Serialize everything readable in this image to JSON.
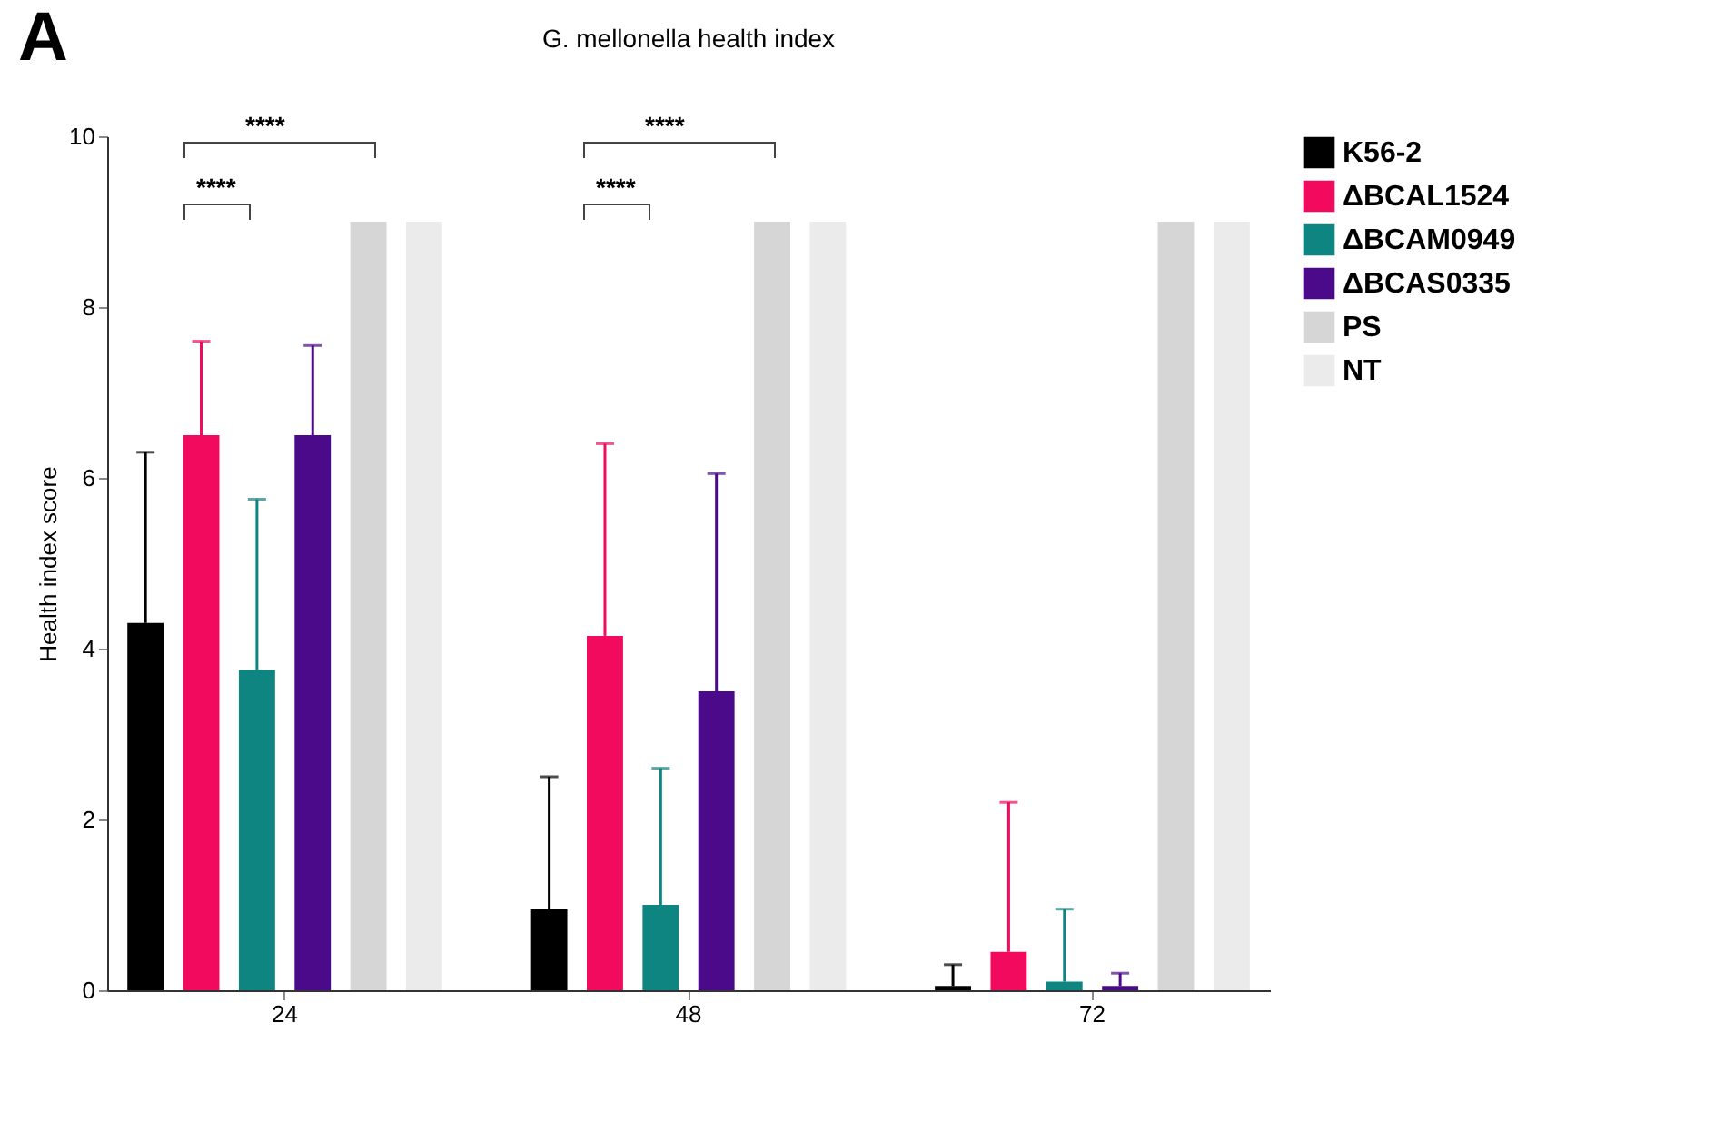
{
  "chart_data": {
    "type": "bar",
    "title": "G. mellonella health index",
    "ylabel": "Health index score",
    "categories": [
      "24",
      "48",
      "72"
    ],
    "series": [
      {
        "name": "K56-2",
        "color": "#000000",
        "values": [
          4.3,
          0.95,
          0.05
        ],
        "errors": [
          [
            4.3,
            6.3
          ],
          [
            0.95,
            2.5
          ],
          [
            0.05,
            0.3
          ]
        ]
      },
      {
        "name": "ΔBCAL1524",
        "color": "#f20a5e",
        "values": [
          6.5,
          4.15,
          0.45
        ],
        "errors": [
          [
            6.5,
            7.6
          ],
          [
            4.15,
            6.4
          ],
          [
            0.45,
            2.2
          ]
        ]
      },
      {
        "name": "ΔBCAM0949",
        "color": "#0e8580",
        "values": [
          3.75,
          1,
          0.1
        ],
        "errors": [
          [
            3.75,
            5.75
          ],
          [
            1,
            2.6
          ],
          [
            0.1,
            0.95
          ]
        ]
      },
      {
        "name": "ΔBCAS0335",
        "color": "#4a0a8a",
        "values": [
          6.5,
          3.5,
          0.05
        ],
        "errors": [
          [
            6.5,
            7.55
          ],
          [
            3.5,
            6.05
          ],
          [
            0.05,
            0.2
          ]
        ]
      },
      {
        "name": "PS",
        "color": "#d6d6d6",
        "values": [
          9,
          9,
          9
        ]
      },
      {
        "name": "NT",
        "color": "#ebebeb",
        "values": [
          9,
          9,
          9
        ]
      }
    ],
    "ylim": [
      0,
      10
    ],
    "yticks": [
      0,
      2,
      4,
      6,
      8,
      10
    ],
    "grid": false,
    "legend": "right",
    "annotations": [
      "A",
      "****",
      "****",
      "****",
      "****"
    ]
  }
}
